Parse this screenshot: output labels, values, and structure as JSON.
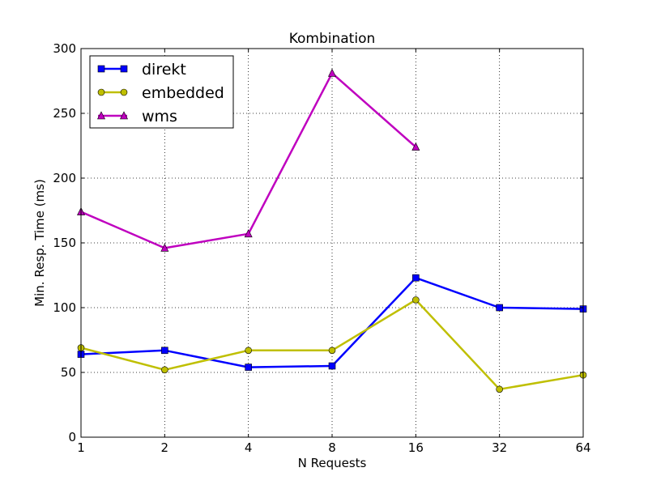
{
  "chart_data": {
    "type": "line",
    "title": "Kombination",
    "xlabel": "N Requests",
    "ylabel": "Min. Resp. Time (ms)",
    "x_scale": "log2",
    "x": [
      1,
      2,
      4,
      8,
      16,
      32,
      64
    ],
    "x_tick_labels": [
      "1",
      "2",
      "4",
      "8",
      "16",
      "32",
      "64"
    ],
    "ylim": [
      0,
      300
    ],
    "y_ticks": [
      0,
      50,
      100,
      150,
      200,
      250,
      300
    ],
    "y_tick_labels": [
      "0",
      "50",
      "100",
      "150",
      "200",
      "250",
      "300"
    ],
    "grid": true,
    "legend_position": "top-left",
    "series": [
      {
        "name": "direkt",
        "color": "#0000ff",
        "marker": "square",
        "values": [
          64,
          67,
          54,
          55,
          123,
          100,
          99
        ]
      },
      {
        "name": "embedded",
        "color": "#bfbf00",
        "marker": "circle",
        "values": [
          69,
          52,
          67,
          67,
          106,
          37,
          48
        ]
      },
      {
        "name": "wms",
        "color": "#bf00bf",
        "marker": "triangle",
        "values": [
          174,
          146,
          157,
          281,
          224,
          null,
          null
        ]
      }
    ]
  }
}
